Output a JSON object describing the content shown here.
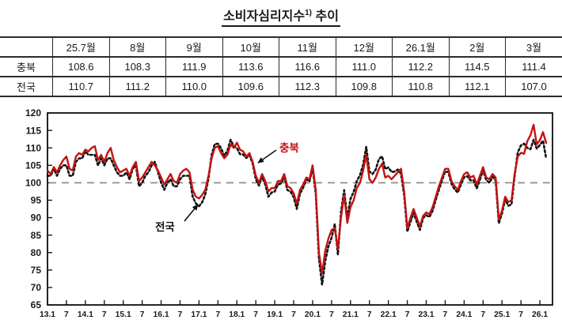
{
  "title": {
    "main": "소비자심리지수",
    "sup": "1)",
    "tail": " 추이"
  },
  "table": {
    "columns": [
      "",
      "25.7월",
      "8월",
      "9월",
      "10월",
      "11월",
      "12월",
      "26.1월",
      "2월",
      "3월"
    ],
    "rows": [
      {
        "label": "충북",
        "values": [
          "108.6",
          "108.3",
          "111.9",
          "113.6",
          "116.6",
          "111.0",
          "112.2",
          "114.5",
          "111.4"
        ]
      },
      {
        "label": "전국",
        "values": [
          "110.7",
          "111.2",
          "110.0",
          "109.6",
          "112.3",
          "109.8",
          "110.8",
          "112.1",
          "107.0"
        ]
      }
    ]
  },
  "chart_data": {
    "type": "line",
    "title": "",
    "xlabel": "",
    "ylabel": "",
    "ylim": [
      65,
      120
    ],
    "y_ticks": [
      65,
      70,
      75,
      80,
      85,
      90,
      95,
      100,
      105,
      110,
      115,
      120
    ],
    "reference_line": 100,
    "grid": false,
    "legend_position": "inline-annotations",
    "x_start": "2013-01",
    "x_end": "2026-03",
    "x_tick_every_months": 6,
    "x_tick_labels": [
      "13.1",
      "7",
      "14.1",
      "7",
      "15.1",
      "7",
      "16.1",
      "7",
      "17.1",
      "7",
      "18.1",
      "7",
      "19.1",
      "7",
      "20.1",
      "7",
      "21.1",
      "7",
      "22.1",
      "7",
      "23.1",
      "7",
      "24.1",
      "7",
      "25.1",
      "7",
      "26.1"
    ],
    "colors": {
      "chungbuk": "#c41212",
      "jeonguk": "#111111",
      "reference": "#8c8c8c"
    },
    "series": [
      {
        "name": "전국",
        "key": "jeonguk",
        "style": "dotted",
        "color": "#111111",
        "values": [
          102.0,
          102.0,
          104.0,
          102.0,
          104.0,
          105.0,
          105.0,
          102.0,
          102.0,
          106.0,
          107.0,
          107.0,
          109.0,
          108.0,
          108.0,
          108.0,
          105.0,
          107.0,
          105.0,
          107.0,
          107.0,
          105.0,
          103.0,
          102.0,
          102.0,
          103.0,
          101.0,
          104.0,
          105.0,
          99.0,
          100.0,
          102.0,
          103.0,
          105.0,
          106.0,
          103.0,
          100.0,
          98.0,
          100.0,
          101.0,
          99.0,
          99.0,
          101.0,
          102.0,
          102.0,
          102.0,
          96.0,
          94.1,
          93.3,
          94.4,
          96.7,
          101.2,
          108.0,
          111.1,
          111.2,
          109.9,
          107.7,
          109.2,
          112.3,
          110.5,
          109.9,
          108.2,
          108.1,
          107.1,
          107.9,
          105.5,
          101.0,
          99.2,
          101.7,
          99.5,
          96.0,
          97.2,
          97.5,
          99.5,
          99.8,
          101.6,
          97.9,
          97.5,
          95.9,
          92.5,
          96.9,
          98.6,
          100.9,
          100.4,
          104.2,
          96.9,
          78.4,
          70.8,
          77.6,
          81.8,
          84.2,
          88.2,
          79.4,
          91.6,
          97.9,
          89.8,
          95.4,
          97.4,
          100.5,
          102.2,
          105.2,
          110.3,
          103.2,
          102.5,
          103.8,
          106.8,
          107.6,
          103.9,
          104.4,
          103.1,
          103.2,
          103.8,
          102.6,
          96.4,
          86.0,
          88.8,
          91.4,
          88.8,
          86.5,
          89.9,
          90.7,
          90.2,
          92.0,
          95.1,
          98.0,
          100.7,
          103.2,
          103.1,
          99.7,
          98.1,
          97.2,
          99.5,
          101.6,
          101.9,
          100.7,
          100.7,
          98.4,
          100.9,
          103.6,
          100.8,
          100.0,
          101.7,
          100.7,
          88.4,
          91.2,
          95.2,
          93.4,
          93.8,
          101.8,
          108.7,
          110.7,
          111.2,
          110.0,
          109.6,
          112.3,
          109.8,
          110.8,
          112.1,
          107.0
        ]
      },
      {
        "name": "충북",
        "key": "chungbuk",
        "style": "solid",
        "color": "#c41212",
        "values": [
          103.5,
          102.5,
          104.5,
          103.0,
          105.0,
          106.5,
          107.5,
          104.0,
          103.5,
          107.5,
          108.5,
          108.0,
          109.5,
          109.0,
          110.0,
          110.5,
          106.5,
          108.0,
          106.0,
          108.5,
          110.0,
          106.5,
          104.5,
          103.0,
          103.5,
          104.0,
          102.0,
          104.5,
          106.0,
          100.5,
          101.5,
          103.0,
          104.5,
          106.0,
          105.0,
          103.5,
          101.5,
          99.5,
          101.0,
          102.5,
          100.5,
          100.0,
          102.5,
          103.5,
          104.0,
          103.0,
          98.0,
          96.0,
          95.5,
          96.5,
          98.0,
          102.0,
          107.0,
          110.0,
          110.5,
          108.5,
          107.0,
          108.0,
          111.0,
          110.0,
          111.5,
          109.5,
          109.0,
          107.5,
          108.5,
          106.0,
          102.0,
          100.0,
          102.5,
          100.5,
          97.5,
          98.5,
          98.5,
          100.5,
          100.5,
          102.5,
          99.0,
          98.5,
          97.0,
          94.0,
          98.0,
          99.5,
          101.5,
          101.0,
          105.0,
          98.0,
          80.0,
          74.0,
          80.5,
          84.0,
          86.5,
          87.0,
          81.0,
          90.0,
          96.5,
          88.5,
          93.0,
          95.0,
          98.5,
          100.0,
          103.5,
          108.0,
          101.0,
          100.0,
          101.5,
          104.0,
          105.5,
          101.5,
          102.0,
          101.0,
          102.0,
          103.0,
          104.0,
          97.5,
          87.0,
          90.0,
          92.5,
          90.0,
          87.5,
          90.5,
          91.5,
          91.0,
          93.0,
          96.0,
          99.0,
          101.5,
          104.0,
          104.0,
          100.5,
          99.0,
          98.0,
          100.5,
          102.5,
          103.0,
          101.5,
          102.0,
          99.5,
          102.0,
          104.5,
          101.5,
          101.0,
          102.5,
          101.5,
          89.5,
          92.0,
          96.0,
          94.5,
          95.0,
          102.5,
          107.5,
          108.6,
          108.3,
          111.9,
          113.6,
          116.6,
          111.0,
          112.2,
          114.5,
          111.4
        ]
      }
    ],
    "annotations": [
      {
        "text": "충북",
        "color": "#c41212"
      },
      {
        "text": "전국",
        "color": "#111111"
      }
    ]
  }
}
